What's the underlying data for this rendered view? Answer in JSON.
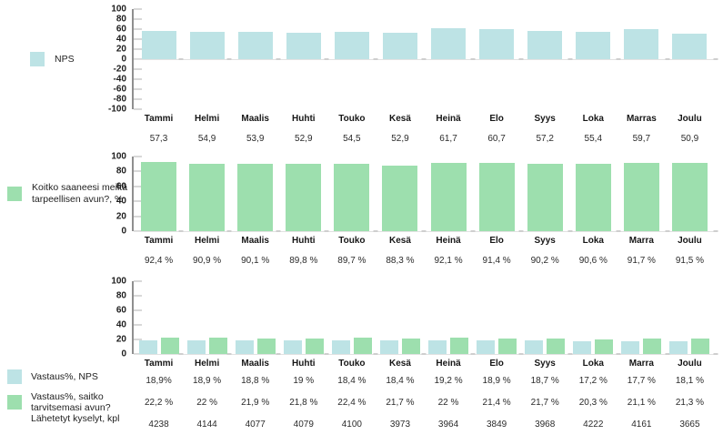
{
  "colors": {
    "series_blue": "#BDE3E5",
    "series_green": "#9DDFAE",
    "axis_line": "#8f8f8f",
    "tick_line": "#d8d8d8",
    "baseline": "#e2e2e2",
    "boundary_tick": "#cfcfcf",
    "text_dark": "#1c1c1c"
  },
  "chart_data": [
    {
      "type": "bar",
      "legend_position": "left",
      "grid": false,
      "legend": [
        {
          "label": "NPS",
          "color": "#BDE3E5"
        }
      ],
      "categories": [
        "Tammi",
        "Helmi",
        "Maalis",
        "Huhti",
        "Touko",
        "Kesä",
        "Heinä",
        "Elo",
        "Syys",
        "Loka",
        "Marras",
        "Joulu"
      ],
      "series": [
        {
          "name": "NPS",
          "color": "#BDE3E5",
          "values": [
            57.3,
            54.9,
            53.9,
            52.9,
            54.5,
            52.9,
            61.7,
            60.7,
            57.2,
            55.4,
            59.7,
            50.9
          ]
        }
      ],
      "value_rows": [
        {
          "label": "",
          "values": [
            "57,3",
            "54,9",
            "53,9",
            "52,9",
            "54,5",
            "52,9",
            "61,7",
            "60,7",
            "57,2",
            "55,4",
            "59,7",
            "50,9"
          ]
        }
      ],
      "ylim": [
        -100,
        100
      ],
      "yticks": [
        100,
        80,
        60,
        40,
        20,
        0,
        -20,
        -40,
        -60,
        -80,
        -100
      ]
    },
    {
      "type": "bar",
      "legend_position": "left",
      "grid": false,
      "legend": [
        {
          "label": "Koitko saaneesi meiltä tarpeellisen avun?, %",
          "color": "#9DDFAE"
        }
      ],
      "categories": [
        "Tammi",
        "Helmi",
        "Maalis",
        "Huhti",
        "Touko",
        "Kesä",
        "Heinä",
        "Elo",
        "Syys",
        "Loka",
        "Marra",
        "Joulu"
      ],
      "series": [
        {
          "name": "Koitko saaneesi meiltä tarpeellisen avun?, %",
          "color": "#9DDFAE",
          "values": [
            92.4,
            90.9,
            90.1,
            89.8,
            89.7,
            88.3,
            92.1,
            91.4,
            90.2,
            90.6,
            91.7,
            91.5
          ]
        }
      ],
      "value_rows": [
        {
          "label": "",
          "values": [
            "92,4 %",
            "90,9 %",
            "90,1 %",
            "89,8 %",
            "89,7 %",
            "88,3 %",
            "92,1 %",
            "91,4 %",
            "90,2 %",
            "90,6 %",
            "91,7 %",
            "91,5 %"
          ]
        }
      ],
      "ylim": [
        0,
        100
      ],
      "yticks": [
        100,
        80,
        60,
        40,
        20,
        0
      ]
    },
    {
      "type": "bar",
      "legend_position": "left",
      "grid": false,
      "legend": [
        {
          "label": "Vastaus%, NPS",
          "color": "#BDE3E5"
        },
        {
          "label": "Vastaus%, saitko tarvitsemasi avun?",
          "color": "#9DDFAE"
        }
      ],
      "categories": [
        "Tammi",
        "Helmi",
        "Maalis",
        "Huhti",
        "Touko",
        "Kesä",
        "Heinä",
        "Elo",
        "Syys",
        "Loka",
        "Marra",
        "Joulu"
      ],
      "series": [
        {
          "name": "Vastaus%, NPS",
          "color": "#BDE3E5",
          "values": [
            18.9,
            18.9,
            18.8,
            19,
            18.4,
            18.4,
            19.2,
            18.9,
            18.7,
            17.2,
            17.7,
            18.1
          ]
        },
        {
          "name": "Vastaus%, saitko tarvitsemasi avun?",
          "color": "#9DDFAE",
          "values": [
            22.2,
            22,
            21.9,
            21.8,
            22.4,
            21.7,
            22,
            21.4,
            21.7,
            20.3,
            21.1,
            21.3
          ]
        }
      ],
      "value_rows": [
        {
          "label": "Vastaus%, NPS",
          "swatch": "#BDE3E5",
          "values": [
            "18,9%",
            "18,9 %",
            "18,8 %",
            "19 %",
            "18,4 %",
            "18,4 %",
            "19,2 %",
            "18,9 %",
            "18,7 %",
            "17,2 %",
            "17,7 %",
            "18,1 %"
          ]
        },
        {
          "label": "Vastaus%, saitko tarvitsemasi avun?",
          "swatch": "#9DDFAE",
          "values": [
            "22,2 %",
            "22 %",
            "21,9 %",
            "21,8 %",
            "22,4 %",
            "21,7 %",
            "22 %",
            "21,4 %",
            "21,7 %",
            "20,3 %",
            "21,1 %",
            "21,3 %"
          ]
        },
        {
          "label": "Lähetetyt kyselyt, kpl",
          "values": [
            "4238",
            "4144",
            "4077",
            "4079",
            "4100",
            "3973",
            "3964",
            "3849",
            "3968",
            "4222",
            "4161",
            "3665"
          ]
        }
      ],
      "ylim": [
        0,
        100
      ],
      "yticks": [
        100,
        80,
        60,
        40,
        20,
        0
      ]
    }
  ]
}
